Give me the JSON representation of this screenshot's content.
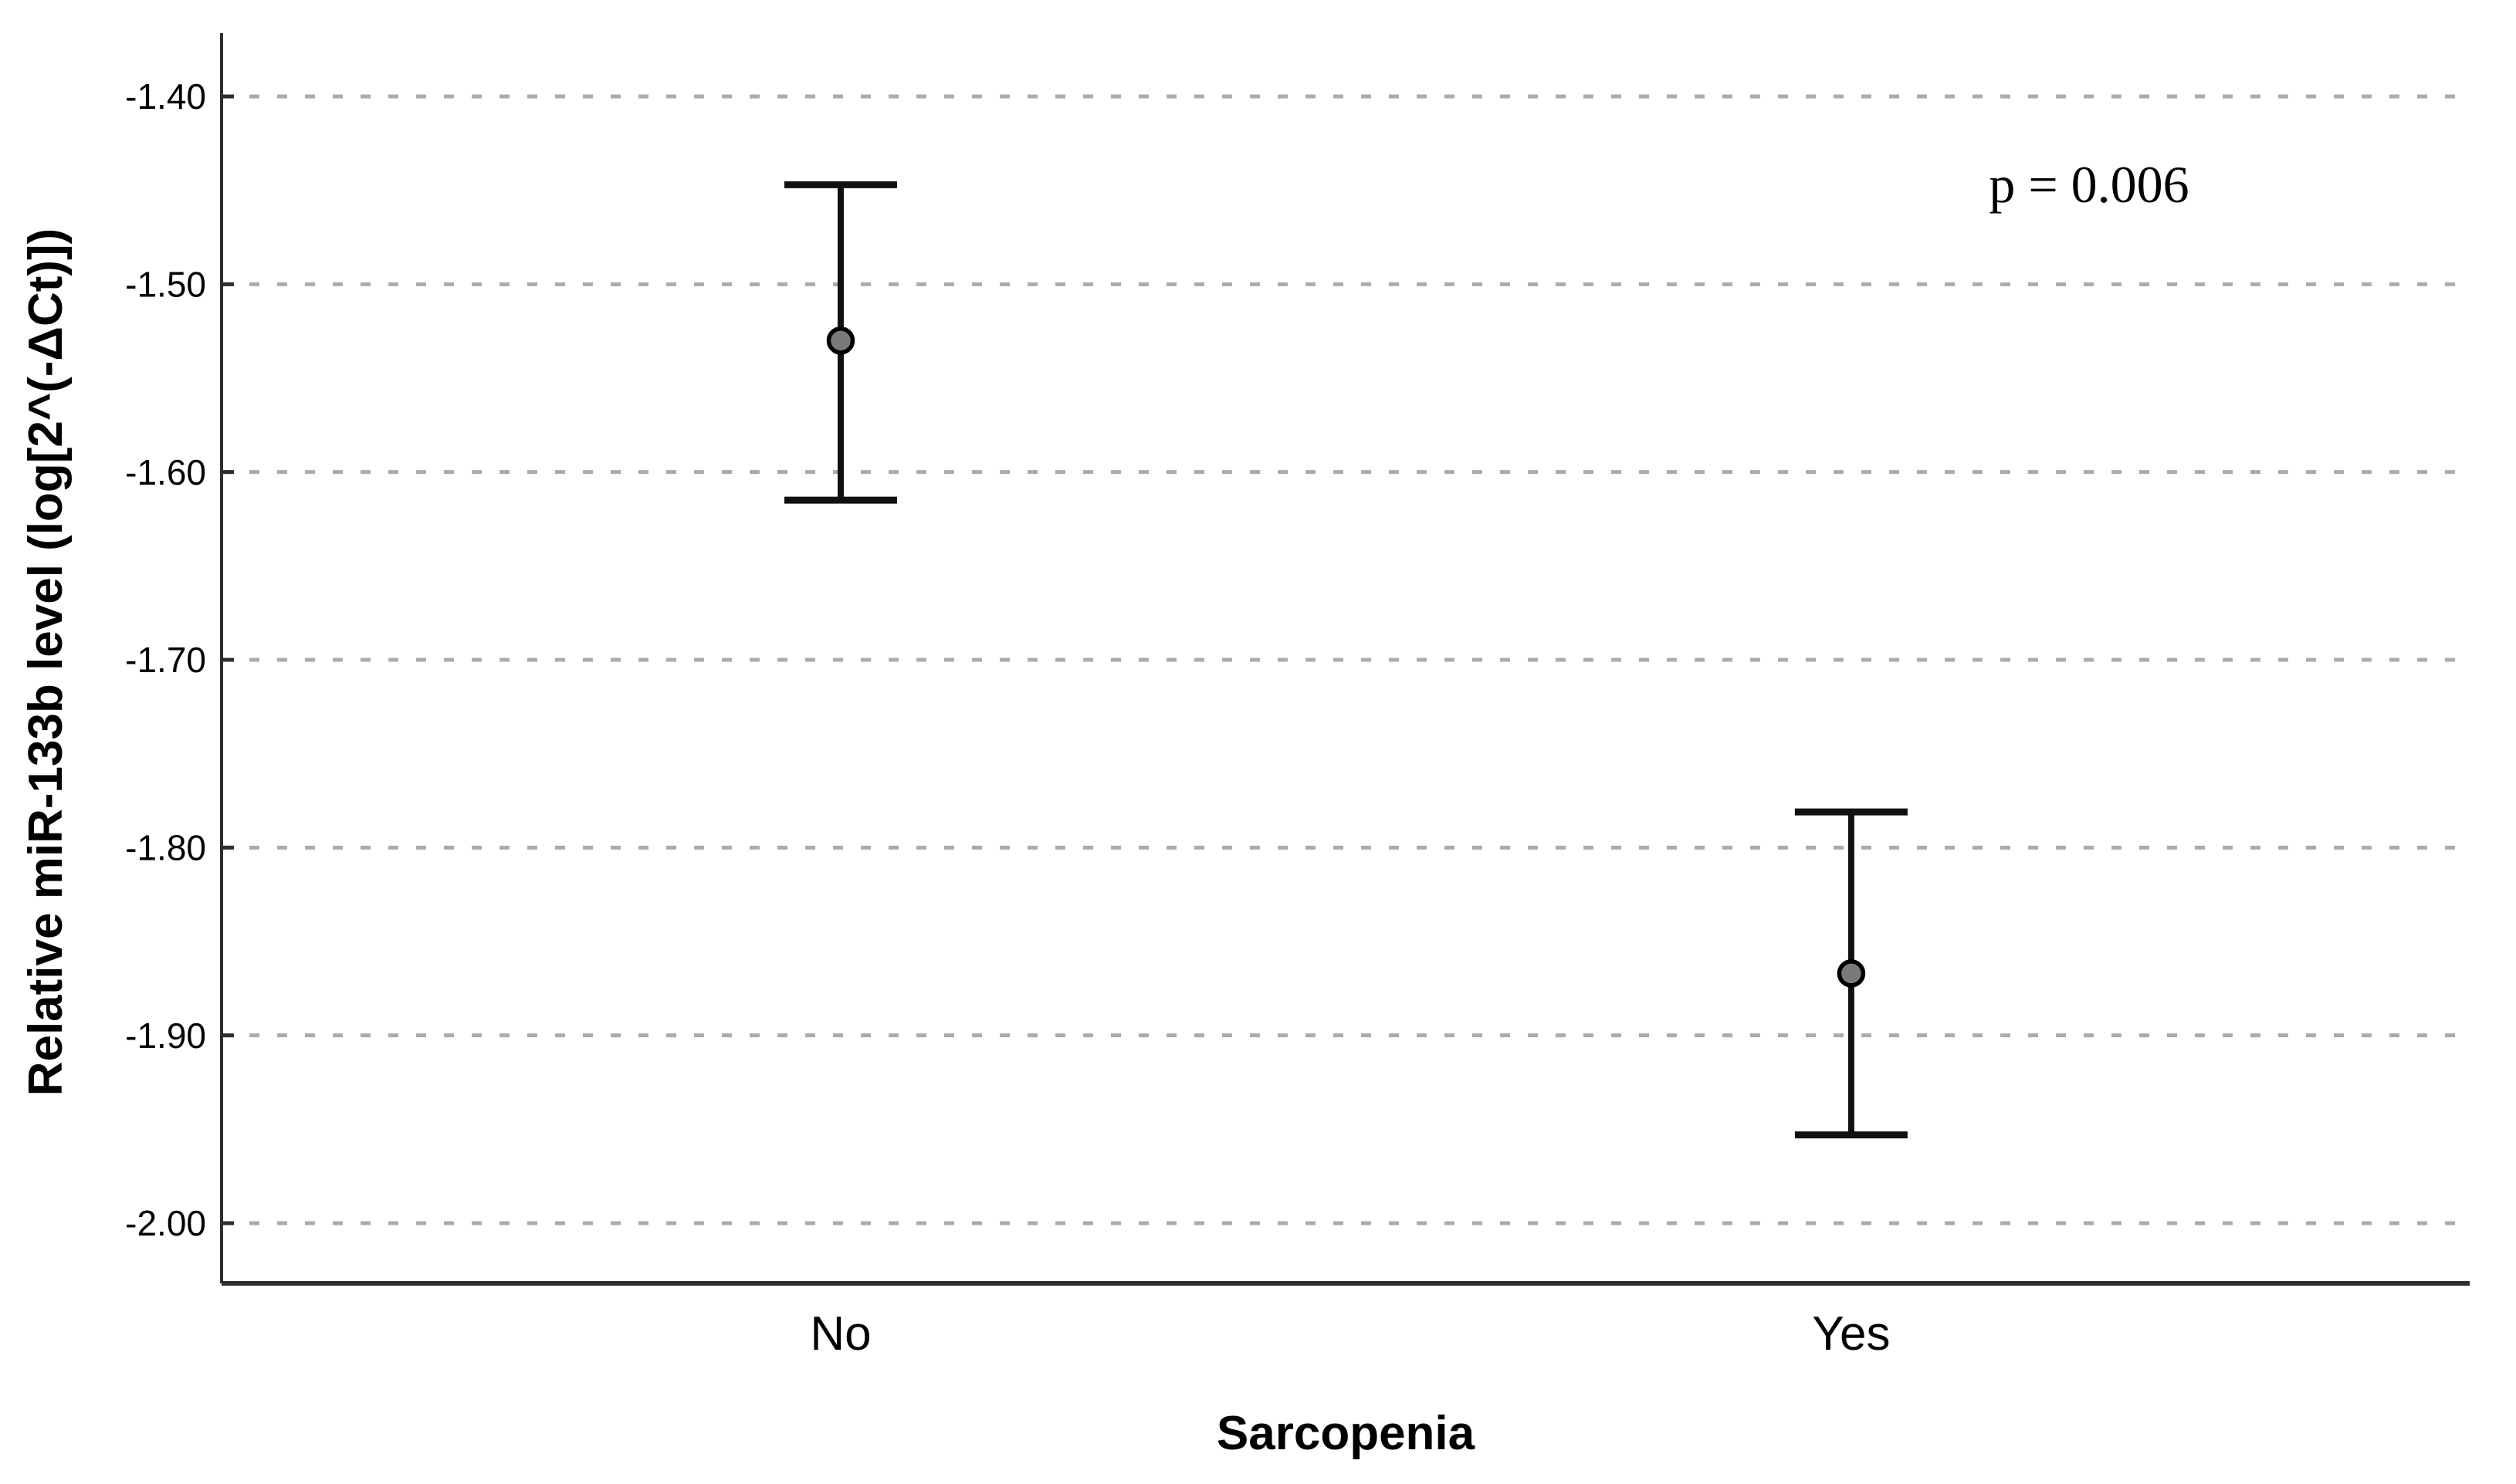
{
  "chart_data": {
    "type": "errorbar",
    "title": "",
    "xlabel": "Sarcopenia",
    "ylabel": "Relative miR-133b level (log[2^(-ΔCt)])",
    "annotation": "p = 0.006",
    "categories": [
      "No",
      "Yes"
    ],
    "series": [
      {
        "name": "mean-with-error-bars",
        "points": [
          {
            "category": "No",
            "mean": -1.53,
            "ci_low": -1.615,
            "ci_high": -1.447
          },
          {
            "category": "Yes",
            "mean": -1.867,
            "ci_low": -1.953,
            "ci_high": -1.781
          }
        ]
      }
    ],
    "yticks": [
      -1.4,
      -1.5,
      -1.6,
      -1.7,
      -1.8,
      -1.9,
      -2.0
    ],
    "ytick_labels": [
      "-1.40",
      "-1.50",
      "-1.60",
      "-1.70",
      "-1.80",
      "-1.90",
      "-2.00"
    ],
    "ylim": [
      -2.032,
      -1.371
    ],
    "grid": "horizontal-dashed",
    "legend": "none",
    "colors": {
      "background": "#ffffff",
      "marker_fill": "#7a7a7a",
      "marker_edge": "#000000",
      "errorbar": "#111111",
      "gridline": "#ababab",
      "axis": "#2e2e2e",
      "text": "#000000"
    }
  }
}
